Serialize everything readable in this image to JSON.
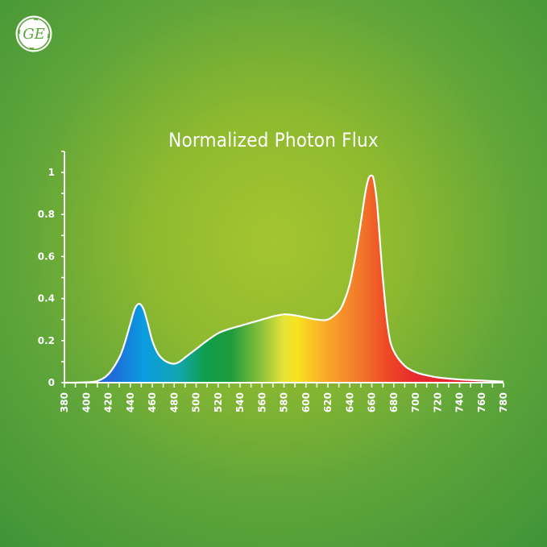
{
  "brand": {
    "logo_text": "GE",
    "logo_icon": "ge-monogram-logo"
  },
  "colors": {
    "background_center": "#a4c530",
    "background_edge": "#3f9437",
    "axis": "#ffffff"
  },
  "chart_data": {
    "type": "area",
    "title": "Normalized Photon Flux",
    "xlabel": "",
    "ylabel": "",
    "xlim": [
      380,
      780
    ],
    "ylim": [
      0,
      1
    ],
    "grid": false,
    "legend": "none",
    "x_ticks": [
      380,
      400,
      420,
      440,
      460,
      480,
      500,
      520,
      540,
      560,
      580,
      600,
      620,
      640,
      660,
      680,
      700,
      720,
      740,
      760,
      780
    ],
    "y_ticks": [
      0,
      0.2,
      0.4,
      0.6,
      0.8,
      1
    ],
    "y_tick_labels": [
      "0",
      "0.2",
      "0.4",
      "0.6",
      "0.8",
      "1"
    ],
    "fill": "visible spectrum gradient",
    "series": [
      {
        "x": [
          380,
          390,
          400,
          410,
          420,
          430,
          435,
          440,
          444,
          448,
          452,
          456,
          460,
          465,
          470,
          475,
          480,
          485,
          490,
          500,
          510,
          520,
          530,
          540,
          550,
          560,
          570,
          580,
          590,
          600,
          610,
          620,
          630,
          635,
          640,
          645,
          650,
          654,
          657,
          660,
          662,
          665,
          670,
          675,
          680,
          690,
          700,
          710,
          720,
          740,
          760,
          780
        ],
        "values": [
          0,
          0,
          0.002,
          0.008,
          0.04,
          0.12,
          0.19,
          0.28,
          0.35,
          0.375,
          0.35,
          0.28,
          0.2,
          0.14,
          0.11,
          0.095,
          0.09,
          0.1,
          0.12,
          0.16,
          0.2,
          0.235,
          0.255,
          0.27,
          0.285,
          0.3,
          0.315,
          0.325,
          0.32,
          0.31,
          0.3,
          0.3,
          0.34,
          0.39,
          0.47,
          0.6,
          0.76,
          0.9,
          0.97,
          0.985,
          0.96,
          0.84,
          0.5,
          0.25,
          0.15,
          0.08,
          0.05,
          0.035,
          0.025,
          0.015,
          0.01,
          0.005
        ]
      }
    ]
  }
}
